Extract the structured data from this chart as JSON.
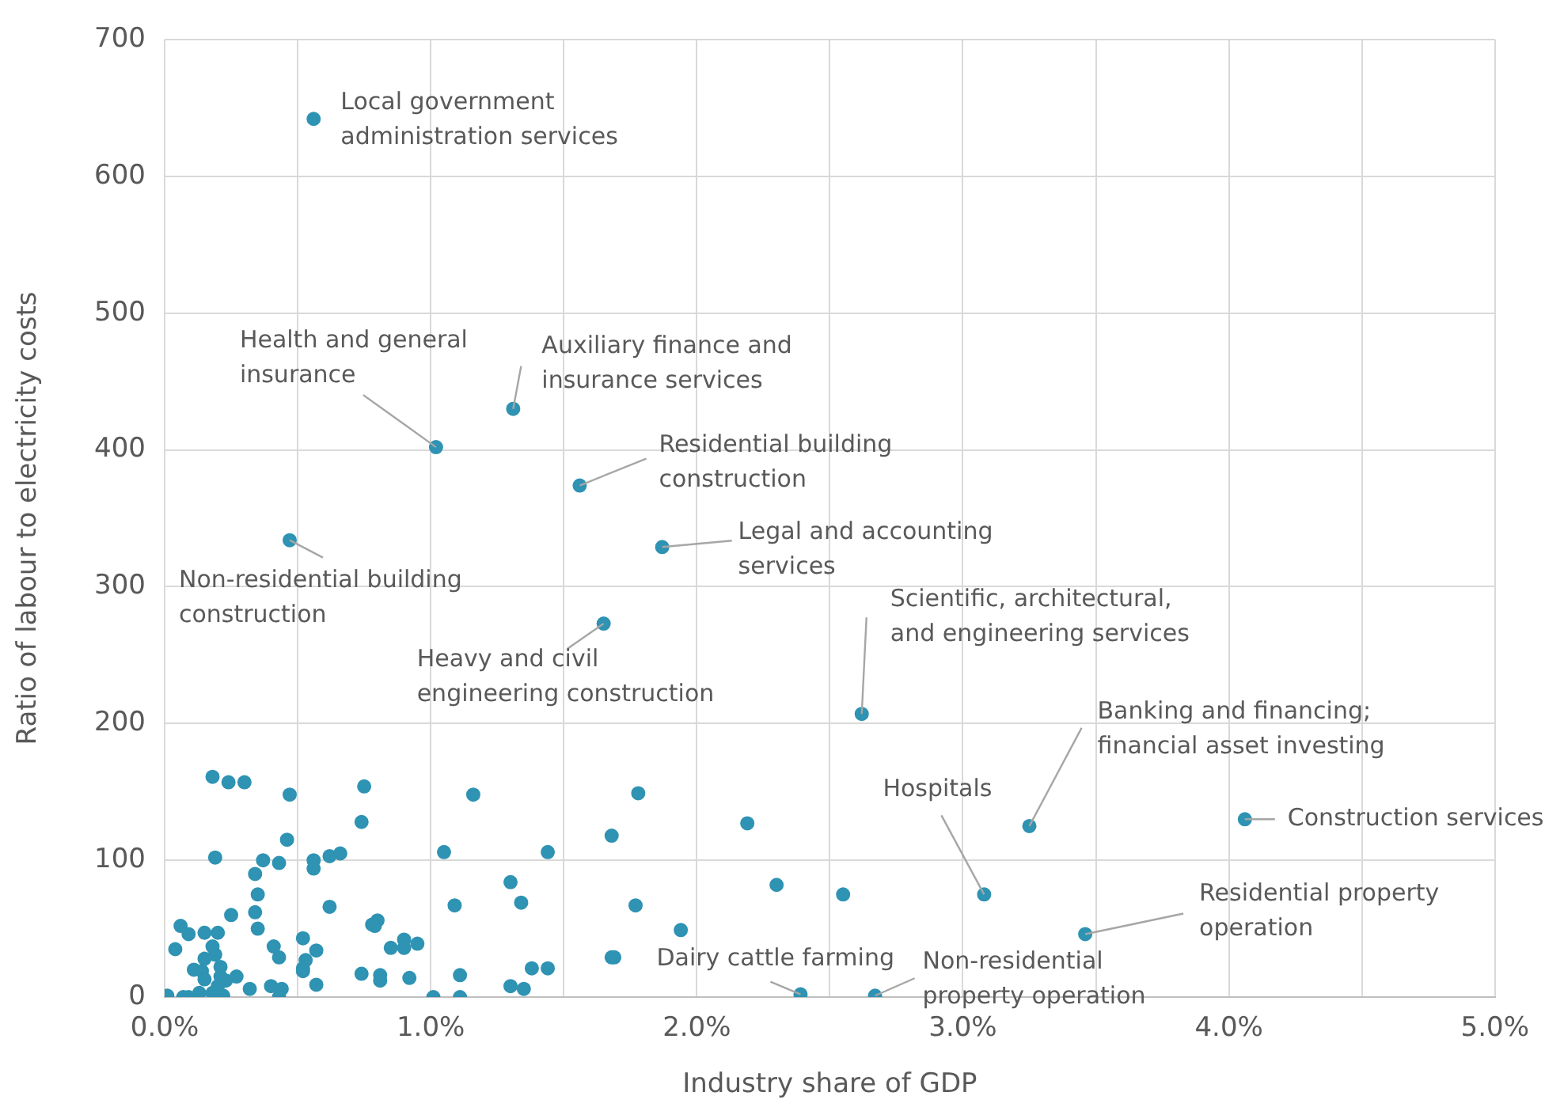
{
  "chart_data": {
    "type": "scatter",
    "xlabel": "Industry share of GDP",
    "ylabel": "Ratio of labour to electricity costs",
    "xlim": [
      0,
      5
    ],
    "xticks": [
      {
        "value": 0,
        "label": "0.0%"
      },
      {
        "value": 1,
        "label": "1.0%"
      },
      {
        "value": 2,
        "label": "2.0%"
      },
      {
        "value": 3,
        "label": "3.0%"
      },
      {
        "value": 4,
        "label": "4.0%"
      },
      {
        "value": 5,
        "label": "5.0%"
      }
    ],
    "ylim": [
      0,
      700
    ],
    "yticks": [
      0,
      100,
      200,
      300,
      400,
      500,
      600,
      700
    ],
    "grid": true,
    "legend": false,
    "marker": "circle",
    "series": [
      {
        "color": "#2f93b3",
        "x": [
          0.56,
          1.02,
          1.31,
          1.56,
          1.87,
          0.47,
          1.65,
          2.62,
          3.25,
          4.06,
          3.08,
          3.46,
          2.39,
          2.67,
          0.18,
          0.24,
          0.3,
          0.47,
          0.75,
          1.16,
          0.74,
          0.46,
          0.19,
          0.37,
          0.43,
          0.56,
          0.56,
          0.62,
          0.66,
          1.05,
          0.34,
          0.35,
          0.25,
          0.34,
          0.62,
          1.09,
          0.35,
          0.06,
          0.09,
          0.15,
          0.2,
          0.04,
          0.18,
          0.19,
          0.15,
          0.41,
          0.43,
          0.52,
          0.57,
          0.53,
          0.52,
          0.52,
          0.78,
          0.8,
          0.79,
          0.85,
          0.9,
          0.9,
          0.95,
          0.11,
          0.14,
          0.15,
          0.21,
          0.21,
          0.23,
          0.27,
          0.2,
          0.13,
          0.18,
          0.32,
          0.4,
          0.44,
          0.57,
          0.74,
          0.81,
          0.81,
          0.92,
          1.11,
          0.01,
          0.07,
          0.09,
          0.22,
          0.43,
          1.01,
          1.11,
          1.44,
          1.68,
          1.78,
          2.19,
          1.3,
          1.34,
          1.77,
          2.3,
          1.94,
          1.38,
          1.44,
          1.68,
          1.69,
          1.3,
          1.35,
          2.55
        ],
        "values": [
          642,
          402,
          430,
          374,
          329,
          334,
          273,
          207,
          125,
          130,
          75,
          46,
          2,
          1,
          161,
          157,
          157,
          148,
          154,
          148,
          128,
          115,
          102,
          100,
          98,
          100,
          94,
          103,
          105,
          106,
          90,
          75,
          60,
          62,
          66,
          67,
          50,
          52,
          46,
          47,
          47,
          35,
          37,
          31,
          28,
          37,
          29,
          43,
          34,
          27,
          21,
          19,
          53,
          56,
          52,
          36,
          42,
          36,
          39,
          20,
          19,
          13,
          22,
          15,
          12,
          15,
          8,
          3,
          3,
          6,
          8,
          6,
          9,
          17,
          16,
          12,
          14,
          16,
          1,
          0,
          0,
          1,
          0,
          0,
          0,
          106,
          118,
          149,
          127,
          84,
          69,
          67,
          82,
          49,
          21,
          21,
          29,
          29,
          8,
          6,
          75
        ]
      }
    ],
    "annotations": [
      {
        "text": "Local government\nadministration services",
        "x": 0.56,
        "y": 642
      },
      {
        "text": "Health and general\ninsurance",
        "x": 1.02,
        "y": 402
      },
      {
        "text": "Auxiliary finance and\ninsurance services",
        "x": 1.31,
        "y": 430
      },
      {
        "text": "Residential building\nconstruction",
        "x": 1.56,
        "y": 374
      },
      {
        "text": "Legal and accounting\nservices",
        "x": 1.87,
        "y": 329
      },
      {
        "text": "Non-residential building\nconstruction",
        "x": 0.47,
        "y": 334
      },
      {
        "text": "Heavy and civil\nengineering construction",
        "x": 1.65,
        "y": 273
      },
      {
        "text": "Scientific, architectural,\nand engineering services",
        "x": 2.62,
        "y": 207
      },
      {
        "text": "Banking and financing;\nfinancial asset investing",
        "x": 3.25,
        "y": 125
      },
      {
        "text": "Construction services",
        "x": 4.06,
        "y": 130
      },
      {
        "text": "Hospitals",
        "x": 3.08,
        "y": 75
      },
      {
        "text": "Residential property\noperation",
        "x": 3.46,
        "y": 46
      },
      {
        "text": "Dairy cattle farming",
        "x": 2.39,
        "y": 2
      },
      {
        "text": "Non-residential\nproperty operation",
        "x": 2.67,
        "y": 1
      }
    ]
  }
}
